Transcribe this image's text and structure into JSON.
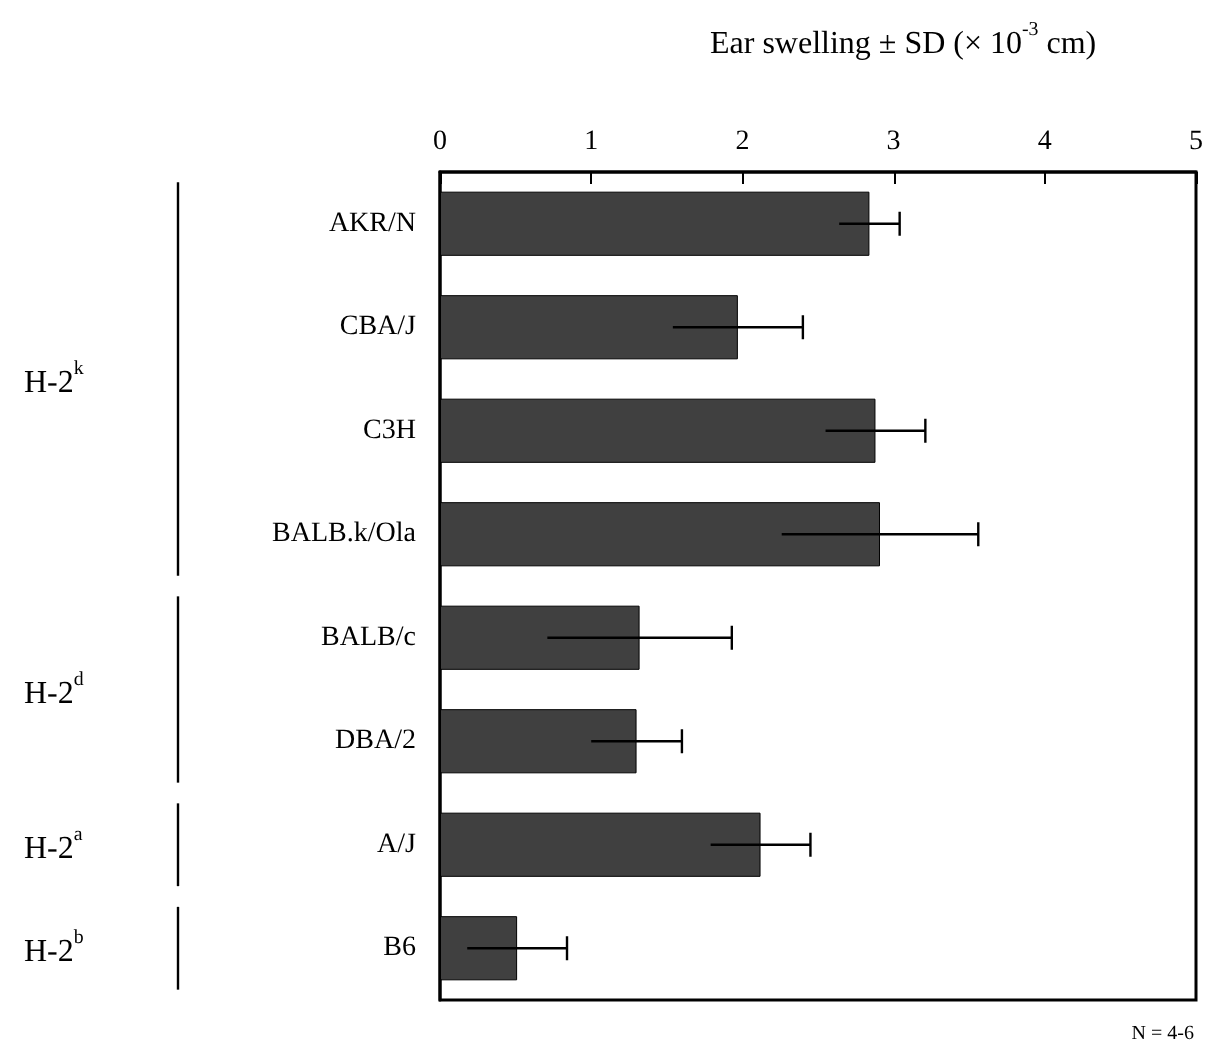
{
  "chart_data": {
    "type": "bar",
    "orientation": "horizontal",
    "xlabel": "Ear swelling ± SD (× 10$^{-3}$ cm)",
    "categories": [
      "AKR/N",
      "CBA/J",
      "C3H",
      "BALB.k/Ola",
      "BALB/c",
      "DBA/2",
      "A/J",
      "B6"
    ],
    "values": [
      2.84,
      1.97,
      2.88,
      2.91,
      1.32,
      1.3,
      2.12,
      0.51
    ],
    "errors": [
      0.2,
      0.43,
      0.33,
      0.65,
      0.61,
      0.3,
      0.33,
      0.33
    ],
    "color": "#404040",
    "xlim": [
      0,
      5
    ],
    "xticks": [
      0,
      1,
      2,
      3,
      4,
      5
    ],
    "grid": false,
    "annotations": [
      "H-2$^{k}$",
      "H-2$^{d}$",
      "H-2$^{a}$",
      "H-2$^{b}$",
      "N = 4-6"
    ]
  }
}
